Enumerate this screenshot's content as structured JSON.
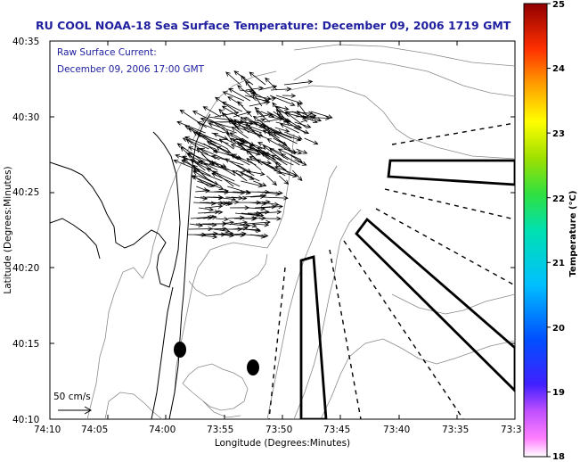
{
  "title": "RU COOL  NOAA-18  Sea Surface Temperature:  December 09, 2006 1719 GMT",
  "annotation": {
    "line1": "Raw Surface Current:",
    "line2": "December 09, 2006 17:00 GMT"
  },
  "scale_label": "50 cm/s",
  "axes": {
    "xlabel": "Longitude (Degrees:Minutes)",
    "ylabel": "Latitude (Degrees:Minutes)",
    "x_ticks": [
      "74:10",
      "74:05",
      "74:00",
      "73:55",
      "73:50",
      "73:45",
      "73:40",
      "73:35",
      "73:3"
    ],
    "y_ticks": [
      "40:35",
      "40:30",
      "40:25",
      "40:20",
      "40:15",
      "40:10"
    ]
  },
  "colorbar": {
    "label": "Temperature (°C)",
    "min": 18,
    "max": 25,
    "ticks": [
      "25",
      "24",
      "23",
      "22",
      "21",
      "20",
      "19",
      "18"
    ]
  },
  "colors": {
    "title": "#2020a0",
    "contour": "#8a8a8a"
  }
}
